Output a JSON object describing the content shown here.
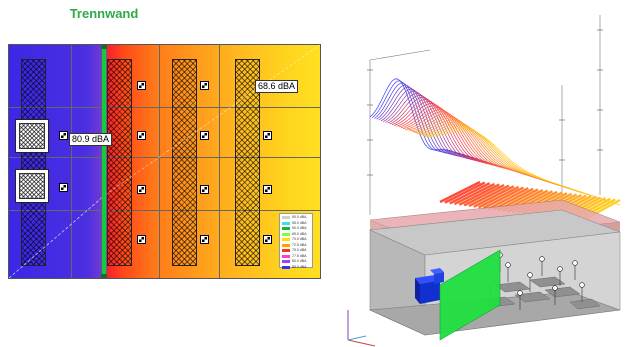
{
  "plan": {
    "title": "Trennwand",
    "label_left": "80.9 dBA",
    "label_right": "68.6 dBA",
    "wall_color": "#16c843"
  },
  "legend": {
    "items": [
      {
        "label": "50.0 dBA",
        "color": "#d0d0d0"
      },
      {
        "label": "55.0 dBA",
        "color": "#40e0e0"
      },
      {
        "label": "60.0 dBA",
        "color": "#20b040"
      },
      {
        "label": "65.0 dBA",
        "color": "#80ff40"
      },
      {
        "label": "70.0 dBA",
        "color": "#ffe000"
      },
      {
        "label": "72.5 dBA",
        "color": "#ffa000"
      },
      {
        "label": "75.0 dBA",
        "color": "#ff3020"
      },
      {
        "label": "77.5 dBA",
        "color": "#ff40c0"
      },
      {
        "label": "80.0 dBA",
        "color": "#a040ff"
      },
      {
        "label": "85.0 dBA",
        "color": "#3030ff"
      }
    ]
  },
  "view3d": {
    "accent_surface_high": "#3040ff",
    "accent_surface_low": "#ffd020",
    "wall_color": "#20e040",
    "machine_color": "#1030d0"
  }
}
